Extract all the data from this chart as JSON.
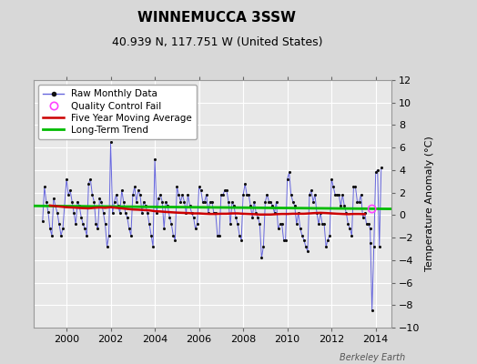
{
  "title": "WINNEMUCCA 3SSW",
  "subtitle": "40.939 N, 117.751 W (United States)",
  "ylabel": "Temperature Anomaly (°C)",
  "watermark": "Berkeley Earth",
  "ylim": [
    -10,
    12
  ],
  "yticks": [
    -10,
    -8,
    -6,
    -4,
    -2,
    0,
    2,
    4,
    6,
    8,
    10,
    12
  ],
  "xlim": [
    1998.5,
    2014.7
  ],
  "xticks": [
    2000,
    2002,
    2004,
    2006,
    2008,
    2010,
    2012,
    2014
  ],
  "bg_color": "#d8d8d8",
  "plot_bg_color": "#e8e8e8",
  "raw_color": "#6666dd",
  "dot_color": "#111111",
  "moving_avg_color": "#cc0000",
  "trend_color": "#00bb00",
  "qc_color": "#ff44ff",
  "legend_bg": "#ffffff",
  "raw_monthly_x": [
    1998.917,
    1999.0,
    1999.083,
    1999.167,
    1999.25,
    1999.333,
    1999.417,
    1999.5,
    1999.583,
    1999.667,
    1999.75,
    1999.833,
    2000.0,
    2000.083,
    2000.167,
    2000.25,
    2000.333,
    2000.417,
    2000.5,
    2000.583,
    2000.667,
    2000.75,
    2000.833,
    2000.917,
    2001.0,
    2001.083,
    2001.167,
    2001.25,
    2001.333,
    2001.417,
    2001.5,
    2001.583,
    2001.667,
    2001.75,
    2001.833,
    2001.917,
    2002.0,
    2002.083,
    2002.167,
    2002.25,
    2002.333,
    2002.417,
    2002.5,
    2002.583,
    2002.667,
    2002.75,
    2002.833,
    2002.917,
    2003.0,
    2003.083,
    2003.167,
    2003.25,
    2003.333,
    2003.417,
    2003.5,
    2003.583,
    2003.667,
    2003.75,
    2003.833,
    2003.917,
    2004.0,
    2004.083,
    2004.167,
    2004.25,
    2004.333,
    2004.417,
    2004.5,
    2004.583,
    2004.667,
    2004.75,
    2004.833,
    2004.917,
    2005.0,
    2005.083,
    2005.167,
    2005.25,
    2005.333,
    2005.417,
    2005.5,
    2005.583,
    2005.667,
    2005.75,
    2005.833,
    2005.917,
    2006.0,
    2006.083,
    2006.167,
    2006.25,
    2006.333,
    2006.417,
    2006.5,
    2006.583,
    2006.667,
    2006.75,
    2006.833,
    2006.917,
    2007.0,
    2007.083,
    2007.167,
    2007.25,
    2007.333,
    2007.417,
    2007.5,
    2007.583,
    2007.667,
    2007.75,
    2007.833,
    2007.917,
    2008.0,
    2008.083,
    2008.167,
    2008.25,
    2008.333,
    2008.417,
    2008.5,
    2008.583,
    2008.667,
    2008.75,
    2008.833,
    2008.917,
    2009.0,
    2009.083,
    2009.167,
    2009.25,
    2009.333,
    2009.417,
    2009.5,
    2009.583,
    2009.667,
    2009.75,
    2009.833,
    2009.917,
    2010.0,
    2010.083,
    2010.167,
    2010.25,
    2010.333,
    2010.417,
    2010.5,
    2010.583,
    2010.667,
    2010.75,
    2010.833,
    2010.917,
    2011.0,
    2011.083,
    2011.167,
    2011.25,
    2011.333,
    2011.417,
    2011.5,
    2011.583,
    2011.667,
    2011.75,
    2011.833,
    2011.917,
    2012.0,
    2012.083,
    2012.167,
    2012.25,
    2012.333,
    2012.417,
    2012.5,
    2012.583,
    2012.667,
    2012.75,
    2012.833,
    2012.917,
    2013.0,
    2013.083,
    2013.167,
    2013.25,
    2013.333,
    2013.417,
    2013.5,
    2013.583,
    2013.667,
    2013.75,
    2013.833,
    2013.917,
    2014.0,
    2014.083,
    2014.167,
    2014.25
  ],
  "raw_monthly_y": [
    -0.5,
    2.5,
    1.2,
    0.3,
    -1.2,
    -1.8,
    1.5,
    0.8,
    0.2,
    -0.8,
    -1.8,
    -1.2,
    3.2,
    1.8,
    2.2,
    1.2,
    0.2,
    -0.8,
    1.2,
    0.8,
    -0.2,
    -0.8,
    -1.2,
    -1.8,
    2.8,
    3.2,
    1.8,
    1.2,
    -0.8,
    -1.2,
    1.5,
    1.2,
    0.2,
    -0.8,
    -2.8,
    -1.8,
    6.5,
    0.2,
    1.2,
    1.8,
    0.8,
    0.2,
    2.2,
    1.2,
    0.2,
    -0.2,
    -1.2,
    -1.8,
    1.8,
    2.5,
    1.2,
    2.2,
    1.8,
    0.2,
    1.2,
    0.8,
    0.2,
    -0.8,
    -1.8,
    -2.8,
    5.0,
    0.2,
    1.5,
    1.8,
    1.2,
    -1.2,
    1.2,
    0.8,
    -0.2,
    -0.8,
    -1.8,
    -2.2,
    2.5,
    1.8,
    1.2,
    1.8,
    1.2,
    0.2,
    1.8,
    0.8,
    0.2,
    -0.2,
    -1.2,
    -0.8,
    2.5,
    2.2,
    1.2,
    1.2,
    1.8,
    0.2,
    1.2,
    1.2,
    0.2,
    0.2,
    -1.8,
    -1.8,
    1.8,
    1.8,
    2.2,
    2.2,
    1.2,
    -0.8,
    1.2,
    0.8,
    -0.2,
    -0.8,
    -1.8,
    -2.2,
    1.8,
    2.8,
    1.8,
    1.8,
    0.8,
    -0.2,
    1.2,
    0.2,
    -0.2,
    -0.8,
    -3.8,
    -2.8,
    1.2,
    1.8,
    1.2,
    1.2,
    0.8,
    0.2,
    1.2,
    -1.2,
    -0.8,
    -0.8,
    -2.2,
    -2.2,
    3.2,
    3.8,
    1.8,
    1.2,
    0.8,
    -0.8,
    0.2,
    -1.2,
    -1.8,
    -2.2,
    -2.8,
    -3.2,
    1.8,
    2.2,
    1.2,
    1.8,
    0.2,
    -0.8,
    0.2,
    -0.8,
    -0.8,
    -2.8,
    -2.2,
    -1.8,
    3.2,
    2.5,
    1.8,
    1.8,
    1.8,
    0.8,
    1.8,
    0.8,
    0.2,
    -0.8,
    -1.2,
    -1.8,
    2.5,
    2.5,
    1.2,
    1.2,
    1.8,
    -0.2,
    0.2,
    -0.8,
    -0.8,
    -1.2,
    -8.5,
    -2.8,
    3.8,
    4.0,
    -2.8,
    4.2
  ],
  "moving_avg_x": [
    1999.25,
    1999.5,
    1999.75,
    2000.0,
    2000.25,
    2000.5,
    2000.75,
    2001.0,
    2001.25,
    2001.5,
    2001.75,
    2002.0,
    2002.25,
    2002.5,
    2002.75,
    2003.0,
    2003.25,
    2003.5,
    2003.75,
    2004.0,
    2004.25,
    2004.5,
    2004.75,
    2005.0,
    2005.25,
    2005.5,
    2005.75,
    2006.0,
    2006.25,
    2006.5,
    2006.75,
    2007.0,
    2007.25,
    2007.5,
    2007.75,
    2008.0,
    2008.25,
    2008.5,
    2008.75,
    2009.0,
    2009.25,
    2009.5,
    2009.75,
    2010.0,
    2010.25,
    2010.5,
    2010.75,
    2011.0,
    2011.25,
    2011.5,
    2011.75,
    2012.0,
    2012.25,
    2012.5,
    2012.75,
    2013.0,
    2013.25,
    2013.5
  ],
  "moving_avg_y": [
    0.85,
    0.8,
    0.75,
    0.7,
    0.68,
    0.65,
    0.62,
    0.6,
    0.65,
    0.68,
    0.65,
    0.7,
    0.65,
    0.6,
    0.55,
    0.5,
    0.48,
    0.45,
    0.42,
    0.35,
    0.32,
    0.28,
    0.25,
    0.22,
    0.2,
    0.18,
    0.15,
    0.15,
    0.12,
    0.1,
    0.1,
    0.12,
    0.12,
    0.15,
    0.15,
    0.12,
    0.1,
    0.08,
    0.05,
    0.05,
    0.05,
    0.08,
    0.1,
    0.1,
    0.12,
    0.12,
    0.12,
    0.15,
    0.18,
    0.2,
    0.18,
    0.15,
    0.12,
    0.1,
    0.08,
    0.1,
    0.1,
    0.08
  ],
  "trend_x": [
    1998.5,
    2014.7
  ],
  "trend_y": [
    0.82,
    0.55
  ],
  "qc_fail_x": [
    2013.833
  ],
  "qc_fail_y": [
    0.55
  ],
  "lone_dot_x": [
    2013.75
  ],
  "lone_dot_y": [
    -2.5
  ],
  "title_fontsize": 11,
  "subtitle_fontsize": 9,
  "ylabel_fontsize": 8,
  "tick_fontsize": 8,
  "watermark_fontsize": 7,
  "legend_fontsize": 7.5
}
